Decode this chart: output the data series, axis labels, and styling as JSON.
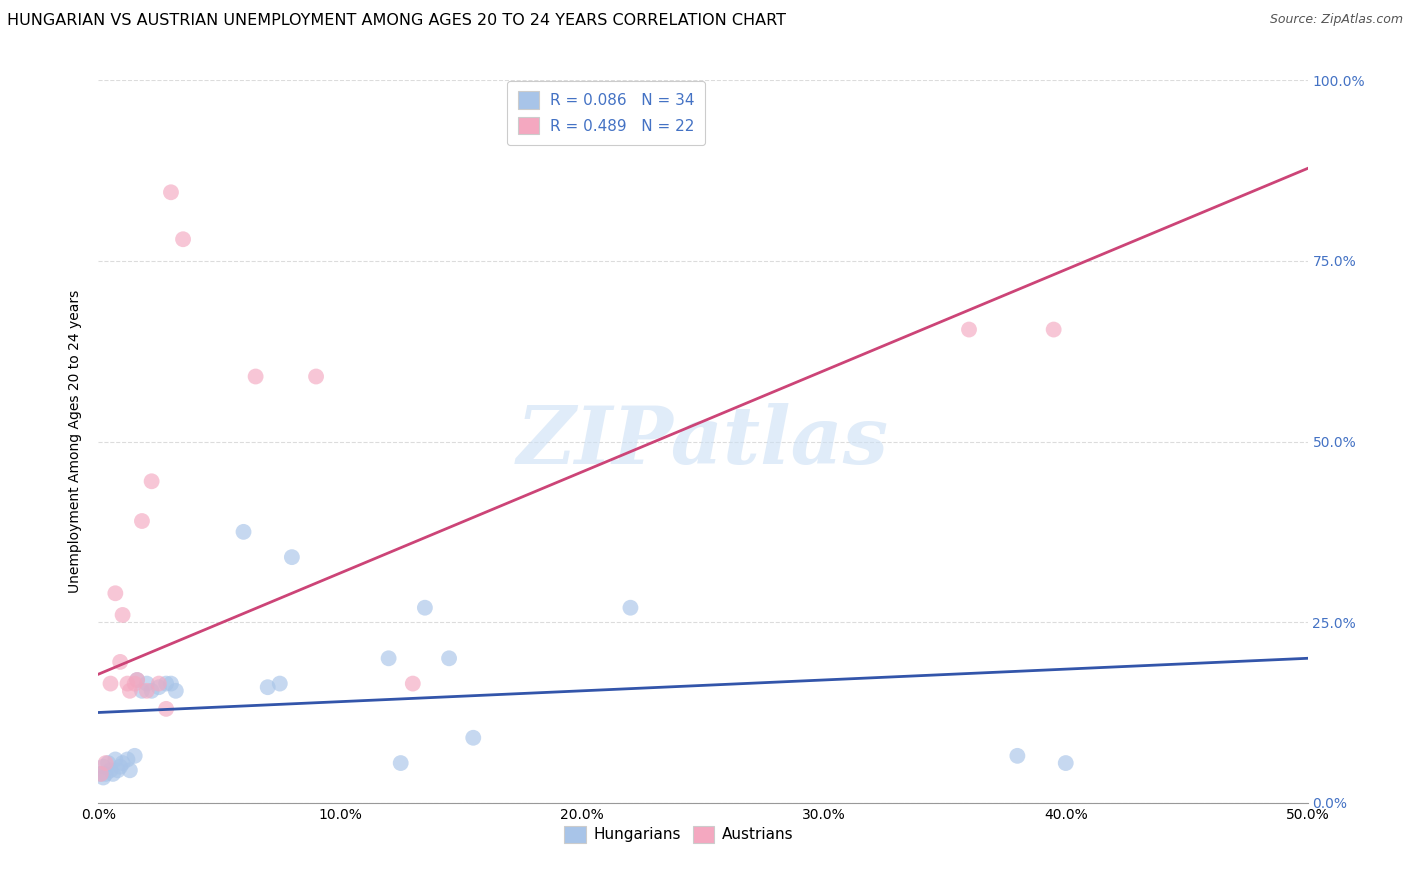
{
  "title": "HUNGARIAN VS AUSTRIAN UNEMPLOYMENT AMONG AGES 20 TO 24 YEARS CORRELATION CHART",
  "source": "Source: ZipAtlas.com",
  "ylabel": "Unemployment Among Ages 20 to 24 years",
  "xlim": [
    0.0,
    0.5
  ],
  "ylim": [
    0.0,
    1.0
  ],
  "xticks": [
    0.0,
    0.1,
    0.2,
    0.3,
    0.4,
    0.5
  ],
  "yticks": [
    0.0,
    0.25,
    0.5,
    0.75,
    1.0
  ],
  "xticklabels": [
    "0.0%",
    "10.0%",
    "20.0%",
    "30.0%",
    "40.0%",
    "50.0%"
  ],
  "yticklabels": [
    "0.0%",
    "25.0%",
    "50.0%",
    "75.0%",
    "100.0%"
  ],
  "blue_color": "#a8c4e8",
  "pink_color": "#f4a8c0",
  "blue_line_color": "#3355aa",
  "pink_line_color": "#cc4477",
  "blue_scatter": [
    [
      0.001,
      0.04
    ],
    [
      0.002,
      0.035
    ],
    [
      0.002,
      0.05
    ],
    [
      0.003,
      0.04
    ],
    [
      0.004,
      0.055
    ],
    [
      0.005,
      0.045
    ],
    [
      0.006,
      0.04
    ],
    [
      0.007,
      0.06
    ],
    [
      0.008,
      0.045
    ],
    [
      0.009,
      0.05
    ],
    [
      0.01,
      0.055
    ],
    [
      0.012,
      0.06
    ],
    [
      0.013,
      0.045
    ],
    [
      0.015,
      0.065
    ],
    [
      0.016,
      0.17
    ],
    [
      0.018,
      0.155
    ],
    [
      0.02,
      0.165
    ],
    [
      0.022,
      0.155
    ],
    [
      0.025,
      0.16
    ],
    [
      0.028,
      0.165
    ],
    [
      0.03,
      0.165
    ],
    [
      0.032,
      0.155
    ],
    [
      0.06,
      0.375
    ],
    [
      0.07,
      0.16
    ],
    [
      0.075,
      0.165
    ],
    [
      0.08,
      0.34
    ],
    [
      0.12,
      0.2
    ],
    [
      0.125,
      0.055
    ],
    [
      0.135,
      0.27
    ],
    [
      0.145,
      0.2
    ],
    [
      0.155,
      0.09
    ],
    [
      0.22,
      0.27
    ],
    [
      0.38,
      0.065
    ],
    [
      0.4,
      0.055
    ]
  ],
  "pink_scatter": [
    [
      0.001,
      0.04
    ],
    [
      0.003,
      0.055
    ],
    [
      0.005,
      0.165
    ],
    [
      0.007,
      0.29
    ],
    [
      0.009,
      0.195
    ],
    [
      0.01,
      0.26
    ],
    [
      0.012,
      0.165
    ],
    [
      0.013,
      0.155
    ],
    [
      0.015,
      0.165
    ],
    [
      0.016,
      0.17
    ],
    [
      0.018,
      0.39
    ],
    [
      0.02,
      0.155
    ],
    [
      0.022,
      0.445
    ],
    [
      0.025,
      0.165
    ],
    [
      0.028,
      0.13
    ],
    [
      0.03,
      0.845
    ],
    [
      0.035,
      0.78
    ],
    [
      0.065,
      0.59
    ],
    [
      0.09,
      0.59
    ],
    [
      0.13,
      0.165
    ],
    [
      0.36,
      0.655
    ],
    [
      0.395,
      0.655
    ]
  ],
  "blue_line": [
    [
      0.0,
      0.125
    ],
    [
      0.5,
      0.2
    ]
  ],
  "pink_line": [
    [
      0.0,
      0.178
    ],
    [
      0.5,
      0.878
    ]
  ],
  "watermark_text": "ZIPatlas",
  "watermark_color": "#cce0f5",
  "watermark_alpha": 0.6,
  "marker_size": 130,
  "marker_alpha": 0.65,
  "background_color": "#ffffff",
  "grid_color": "#bbbbbb",
  "grid_alpha": 0.5,
  "title_fontsize": 11.5,
  "source_fontsize": 9,
  "axis_label_fontsize": 10,
  "tick_label_fontsize": 10,
  "legend_fontsize": 11,
  "right_tick_color": "#4472c4"
}
